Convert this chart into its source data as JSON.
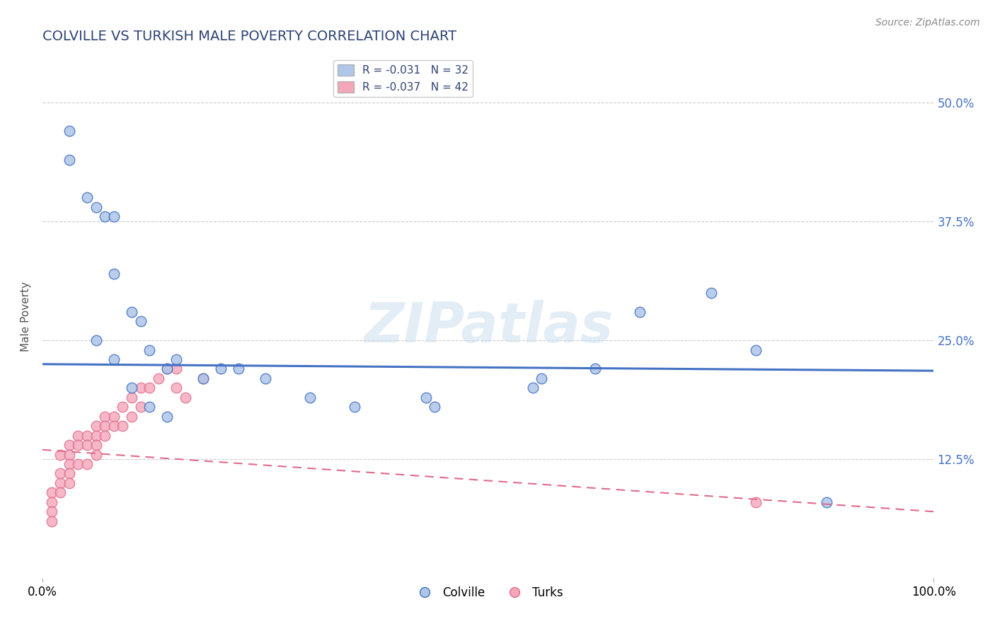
{
  "title": "COLVILLE VS TURKISH MALE POVERTY CORRELATION CHART",
  "source": "Source: ZipAtlas.com",
  "ylabel": "Male Poverty",
  "xlim": [
    0,
    100
  ],
  "ylim": [
    0,
    55
  ],
  "colville_scatter": {
    "x": [
      3,
      5,
      7,
      8,
      10,
      11,
      12,
      14,
      15,
      18,
      22,
      25,
      30,
      35,
      43,
      44,
      55,
      56,
      62,
      67,
      75,
      80,
      3,
      6,
      8,
      6,
      8,
      10,
      12,
      14,
      88,
      20
    ],
    "y": [
      44,
      40,
      38,
      32,
      28,
      27,
      24,
      22,
      23,
      21,
      22,
      21,
      19,
      18,
      19,
      18,
      20,
      21,
      22,
      28,
      30,
      24,
      47,
      39,
      38,
      25,
      23,
      20,
      18,
      17,
      8,
      22
    ]
  },
  "turks_scatter": {
    "x": [
      1,
      1,
      1,
      1,
      2,
      2,
      2,
      2,
      3,
      3,
      3,
      3,
      3,
      4,
      4,
      4,
      5,
      5,
      5,
      6,
      6,
      6,
      6,
      7,
      7,
      7,
      8,
      8,
      9,
      9,
      10,
      10,
      11,
      11,
      12,
      13,
      14,
      15,
      15,
      16,
      18,
      80
    ],
    "y": [
      9,
      8,
      7,
      6,
      13,
      11,
      10,
      9,
      14,
      13,
      12,
      11,
      10,
      15,
      14,
      12,
      15,
      14,
      12,
      16,
      15,
      14,
      13,
      17,
      16,
      15,
      17,
      16,
      18,
      16,
      19,
      17,
      20,
      18,
      20,
      21,
      22,
      22,
      20,
      19,
      21,
      8
    ]
  },
  "colville_color": "#aec6e8",
  "turks_color": "#f4a7b9",
  "colville_line_color": "#4472c4",
  "turks_line_color": "#e06b8a",
  "colville_r": -0.031,
  "turks_r": -0.037,
  "colville_n": 32,
  "turks_n": 42,
  "background_color": "#ffffff",
  "grid_color": "#cccccc",
  "title_color": "#2e4374",
  "source_color": "#888888",
  "watermark": "ZIPatlas",
  "legend_labels": [
    "Colville",
    "Turks"
  ],
  "yticks": [
    12.5,
    25.0,
    37.5,
    50.0
  ],
  "yticklabels": [
    "12.5%",
    "25.0%",
    "37.5%",
    "50.0%"
  ]
}
